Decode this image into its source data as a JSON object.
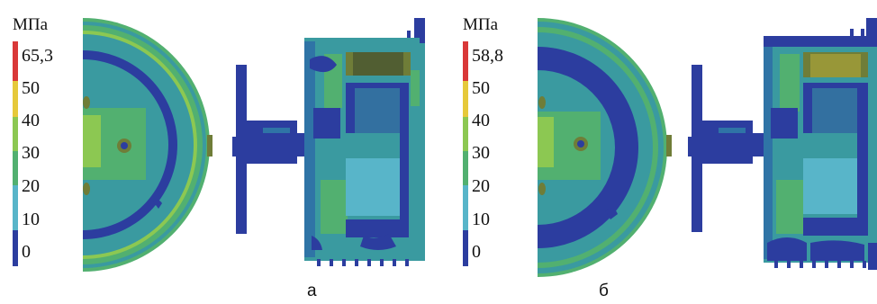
{
  "colors": {
    "background": "#ffffff",
    "dark_blue": "#2c3d9f",
    "steel_blue": "#2f74a6",
    "teal": "#3a9aa0",
    "cyan": "#58b5c9",
    "green": "#52b070",
    "light_green": "#8cc852",
    "yellow": "#e6c93a",
    "orange": "#e68a2e",
    "red": "#d93838",
    "olive": "#6f7d38",
    "dark_olive": "#3e4a2e"
  },
  "panels": [
    {
      "caption": "а",
      "legend": {
        "unit": "МПа",
        "ticks": [
          "65,3",
          "50",
          "40",
          "30",
          "20",
          "10",
          "0"
        ],
        "scale": [
          {
            "from": 50,
            "to": 65.3,
            "color": "#d93838"
          },
          {
            "from": 40,
            "to": 50,
            "color": "#e6c93a"
          },
          {
            "from": 30,
            "to": 40,
            "color": "#8cc852"
          },
          {
            "from": 20,
            "to": 30,
            "color": "#52b070"
          },
          {
            "from": 10,
            "to": 20,
            "color": "#58b5c9"
          },
          {
            "from": 0,
            "to": 10,
            "color": "#2c3d9f"
          }
        ]
      }
    },
    {
      "caption": "б",
      "legend": {
        "unit": "МПа",
        "ticks": [
          "58,8",
          "50",
          "40",
          "30",
          "20",
          "10",
          "0"
        ],
        "scale": [
          {
            "from": 50,
            "to": 58.8,
            "color": "#d93838"
          },
          {
            "from": 40,
            "to": 50,
            "color": "#e6c93a"
          },
          {
            "from": 30,
            "to": 40,
            "color": "#8cc852"
          },
          {
            "from": 20,
            "to": 30,
            "color": "#52b070"
          },
          {
            "from": 10,
            "to": 20,
            "color": "#58b5c9"
          },
          {
            "from": 0,
            "to": 10,
            "color": "#2c3d9f"
          }
        ]
      }
    }
  ]
}
